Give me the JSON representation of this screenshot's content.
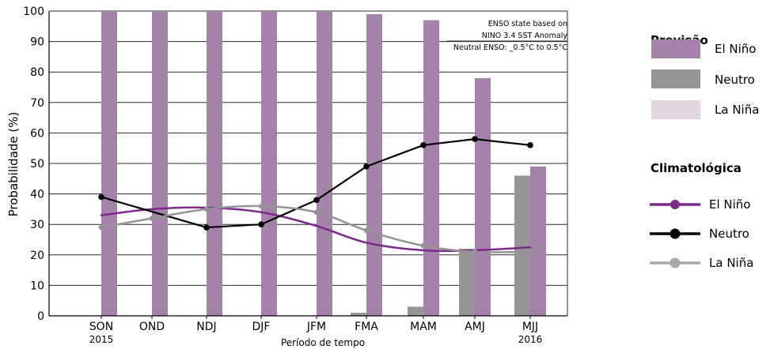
{
  "chart_data": {
    "type": "bar",
    "ylabel": "Probabilidade (%)",
    "xlabel": "Período de tempo",
    "ylim": [
      0,
      100
    ],
    "yticks": [
      "0",
      "10",
      "20",
      "30",
      "40",
      "50",
      "60",
      "70",
      "80",
      "90",
      "100"
    ],
    "grid": "horizontal",
    "categories": [
      "SON",
      "OND",
      "NDJ",
      "DJF",
      "JFM",
      "FMA",
      "MAM",
      "AMJ",
      "MJJ"
    ],
    "category_years": [
      "2015",
      "",
      "",
      "",
      "",
      "",
      "",
      "",
      "2016"
    ],
    "note": [
      "ENSO state based on",
      "NINO 3.4 SST Anomaly",
      "Neutral ENSO: _0.5°C to 0.5°C"
    ],
    "forecast_series": [
      {
        "name": "La Niña",
        "color": "#e2d6e0",
        "values": [
          0,
          0,
          0,
          0,
          0,
          0,
          0,
          0,
          5
        ]
      },
      {
        "name": "Neutro",
        "color": "#959597",
        "values": [
          0,
          0,
          0,
          0,
          0,
          1,
          3,
          22,
          46
        ]
      },
      {
        "name": "El Niño",
        "color": "#a582aa",
        "values": [
          100,
          100,
          100,
          100,
          100,
          99,
          97,
          78,
          49
        ]
      }
    ],
    "climatology_series": [
      {
        "name": "El Niño",
        "color": "#7b2a8a",
        "values": [
          33,
          35,
          35.5,
          34,
          29.5,
          24,
          21.5,
          21.5,
          22.5
        ],
        "markers": false
      },
      {
        "name": "Neutro",
        "color": "#000000",
        "values": [
          39,
          null,
          29,
          30,
          38,
          49,
          56,
          58,
          56
        ],
        "markers": true
      },
      {
        "name": "La Niña",
        "color": "#949494",
        "values": [
          29,
          32,
          35,
          36,
          34,
          28,
          23,
          21,
          21
        ],
        "markers": true
      }
    ]
  },
  "legend": {
    "forecast_title": "Previsão",
    "forecast_items": [
      {
        "label": "El Niño",
        "color": "#a582aa"
      },
      {
        "label": "Neutro",
        "color": "#959597"
      },
      {
        "label": "La Niña",
        "color": "#e2d6e0"
      }
    ],
    "climatology_title": "Climatológica",
    "climatology_items": [
      {
        "label": "El Niño",
        "color": "#7b2a8a"
      },
      {
        "label": "Neutro",
        "color": "#000000"
      },
      {
        "label": "La Niña",
        "color": "#a8a8a8"
      }
    ]
  }
}
